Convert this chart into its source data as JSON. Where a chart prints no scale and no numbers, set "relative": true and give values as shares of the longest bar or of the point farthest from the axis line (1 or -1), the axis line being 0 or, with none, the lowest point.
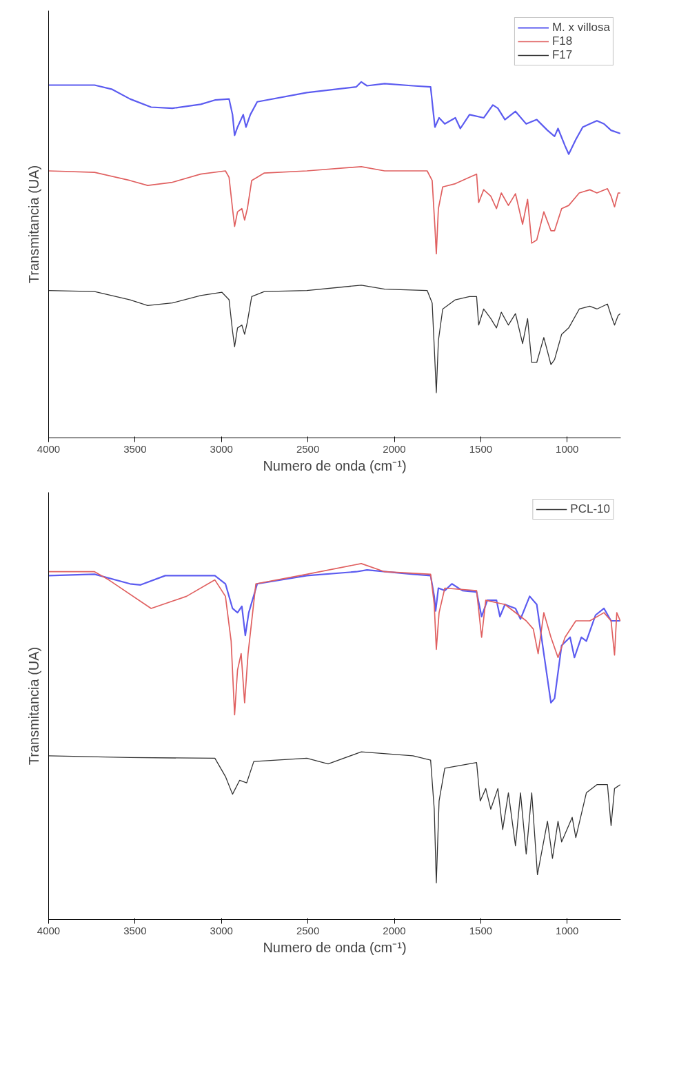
{
  "chart_data": [
    {
      "type": "line",
      "relative": true,
      "xlabel": "Numero de onda (cm⁻¹)",
      "ylabel": "Transmitancia (UA)",
      "xlim": [
        4000,
        690
      ],
      "xticks": [
        4000,
        3500,
        3000,
        2500,
        2000,
        1500,
        1000
      ],
      "legend": "top right",
      "x": [
        4000,
        3734,
        3632,
        3529,
        3407,
        3284,
        3120,
        3038,
        2956,
        2936,
        2924,
        2907,
        2874,
        2858,
        2833,
        2793,
        2506,
        2220,
        2191,
        2158,
        2056,
        1892,
        1790,
        1777,
        1765,
        1741,
        1708,
        1647,
        1618,
        1565,
        1483,
        1430,
        1401,
        1360,
        1299,
        1237,
        1176,
        1114,
        1073,
        1053,
        1012,
        991,
        950,
        910,
        869,
        828,
        787,
        746,
        693
      ],
      "series": [
        {
          "name": "M. x villosa",
          "color": "#5b5bf0",
          "values": [
            0.991,
            0.991,
            0.979,
            0.952,
            0.929,
            0.926,
            0.937,
            0.949,
            0.952,
            0.908,
            0.85,
            0.873,
            0.908,
            0.873,
            0.908,
            0.944,
            0.97,
            0.986,
            1.0,
            0.989,
            0.995,
            0.989,
            0.986,
            0.926,
            0.873,
            0.899,
            0.882,
            0.899,
            0.869,
            0.908,
            0.899,
            0.935,
            0.926,
            0.894,
            0.917,
            0.882,
            0.894,
            0.864,
            0.847,
            0.869,
            0.82,
            0.797,
            0.838,
            0.873,
            0.882,
            0.891,
            0.882,
            0.864,
            0.855
          ]
        },
        {
          "name": "F18",
          "color": "#e06060",
          "x": [
            4000,
            3734,
            3529,
            3427,
            3284,
            3120,
            2977,
            2956,
            2936,
            2924,
            2907,
            2882,
            2866,
            2850,
            2825,
            2752,
            2506,
            2191,
            2056,
            1810,
            1781,
            1765,
            1757,
            1745,
            1720,
            1647,
            1565,
            1524,
            1512,
            1483,
            1442,
            1409,
            1381,
            1340,
            1299,
            1258,
            1229,
            1205,
            1176,
            1135,
            1094,
            1073,
            1032,
            991,
            930,
            869,
            828,
            767,
            746,
            726,
            705,
            693
          ],
          "values": [
            0.75,
            0.746,
            0.723,
            0.709,
            0.718,
            0.741,
            0.75,
            0.732,
            0.644,
            0.594,
            0.635,
            0.644,
            0.612,
            0.644,
            0.723,
            0.744,
            0.75,
            0.762,
            0.75,
            0.75,
            0.723,
            0.591,
            0.517,
            0.644,
            0.705,
            0.714,
            0.732,
            0.741,
            0.661,
            0.697,
            0.679,
            0.644,
            0.688,
            0.653,
            0.686,
            0.6,
            0.67,
            0.547,
            0.556,
            0.635,
            0.582,
            0.582,
            0.644,
            0.653,
            0.688,
            0.697,
            0.688,
            0.7,
            0.679,
            0.649,
            0.688,
            0.688
          ]
        },
        {
          "name": "F17",
          "color": "#333333",
          "x": [
            4000,
            3734,
            3529,
            3427,
            3284,
            3120,
            2997,
            2956,
            2936,
            2924,
            2907,
            2882,
            2866,
            2850,
            2825,
            2752,
            2506,
            2191,
            2056,
            1810,
            1781,
            1769,
            1757,
            1745,
            1720,
            1647,
            1565,
            1524,
            1512,
            1483,
            1442,
            1409,
            1381,
            1340,
            1299,
            1258,
            1229,
            1205,
            1176,
            1135,
            1094,
            1073,
            1032,
            991,
            930,
            869,
            828,
            767,
            746,
            726,
            705,
            693
          ],
          "values": [
            0.414,
            0.411,
            0.388,
            0.372,
            0.379,
            0.4,
            0.409,
            0.388,
            0.3,
            0.256,
            0.309,
            0.317,
            0.291,
            0.326,
            0.397,
            0.411,
            0.414,
            0.429,
            0.418,
            0.414,
            0.379,
            0.256,
            0.127,
            0.273,
            0.362,
            0.388,
            0.397,
            0.397,
            0.317,
            0.362,
            0.335,
            0.309,
            0.353,
            0.317,
            0.349,
            0.265,
            0.335,
            0.212,
            0.212,
            0.282,
            0.206,
            0.22,
            0.291,
            0.309,
            0.362,
            0.37,
            0.362,
            0.376,
            0.344,
            0.317,
            0.344,
            0.349
          ]
        }
      ]
    },
    {
      "type": "line",
      "relative": true,
      "xlabel": "Numero de onda (cm⁻¹)",
      "ylabel": "Transmitancia (UA)",
      "xlim": [
        4000,
        690
      ],
      "xticks": [
        4000,
        3500,
        3000,
        2500,
        2000,
        1500,
        1000
      ],
      "legend": "top right",
      "series": [
        {
          "color": "#5b5bf0",
          "x": [
            4000,
            3734,
            3529,
            3468,
            3325,
            3038,
            2977,
            2936,
            2907,
            2882,
            2862,
            2842,
            2793,
            2506,
            2220,
            2158,
            1892,
            1790,
            1769,
            1761,
            1745,
            1708,
            1667,
            1606,
            1524,
            1495,
            1462,
            1409,
            1389,
            1360,
            1299,
            1270,
            1217,
            1176,
            1135,
            1094,
            1073,
            1032,
            983,
            958,
            918,
            889,
            836,
            787,
            746,
            693
          ],
          "values": [
            0.966,
            0.97,
            0.943,
            0.94,
            0.966,
            0.966,
            0.943,
            0.874,
            0.862,
            0.88,
            0.798,
            0.862,
            0.943,
            0.966,
            0.977,
            0.982,
            0.97,
            0.966,
            0.908,
            0.867,
            0.931,
            0.924,
            0.943,
            0.924,
            0.92,
            0.851,
            0.897,
            0.897,
            0.851,
            0.885,
            0.874,
            0.844,
            0.908,
            0.885,
            0.747,
            0.609,
            0.621,
            0.77,
            0.793,
            0.736,
            0.793,
            0.782,
            0.855,
            0.874,
            0.839,
            0.839
          ]
        },
        {
          "color": "#e06060",
          "x": [
            4000,
            3734,
            3652,
            3407,
            3202,
            3038,
            2977,
            2944,
            2924,
            2907,
            2886,
            2866,
            2846,
            2801,
            2506,
            2191,
            2056,
            1790,
            1769,
            1757,
            1741,
            1708,
            1524,
            1495,
            1471,
            1360,
            1237,
            1196,
            1168,
            1135,
            1094,
            1053,
            1012,
            950,
            869,
            787,
            746,
            726,
            713,
            693
          ],
          "values": [
            0.977,
            0.977,
            0.954,
            0.874,
            0.908,
            0.954,
            0.908,
            0.782,
            0.575,
            0.701,
            0.747,
            0.609,
            0.747,
            0.943,
            0.97,
            1.0,
            0.977,
            0.97,
            0.885,
            0.759,
            0.862,
            0.931,
            0.924,
            0.793,
            0.897,
            0.885,
            0.839,
            0.816,
            0.747,
            0.862,
            0.793,
            0.736,
            0.793,
            0.839,
            0.839,
            0.862,
            0.839,
            0.743,
            0.862,
            0.839
          ]
        },
        {
          "name": "PCL-10",
          "color": "#333333",
          "x": [
            4000,
            3529,
            3038,
            2977,
            2936,
            2895,
            2854,
            2813,
            2506,
            2383,
            2191,
            1892,
            1790,
            1769,
            1757,
            1741,
            1708,
            1524,
            1503,
            1471,
            1442,
            1401,
            1373,
            1340,
            1299,
            1270,
            1237,
            1205,
            1172,
            1114,
            1085,
            1053,
            1032,
            971,
            950,
            889,
            828,
            767,
            746,
            726,
            693
          ],
          "values": [
            0.46,
            0.455,
            0.453,
            0.402,
            0.352,
            0.391,
            0.384,
            0.444,
            0.453,
            0.437,
            0.471,
            0.46,
            0.448,
            0.31,
            0.103,
            0.333,
            0.425,
            0.441,
            0.333,
            0.368,
            0.31,
            0.368,
            0.253,
            0.356,
            0.207,
            0.356,
            0.184,
            0.356,
            0.126,
            0.276,
            0.172,
            0.276,
            0.218,
            0.287,
            0.23,
            0.356,
            0.379,
            0.379,
            0.264,
            0.368,
            0.379
          ]
        }
      ]
    }
  ]
}
